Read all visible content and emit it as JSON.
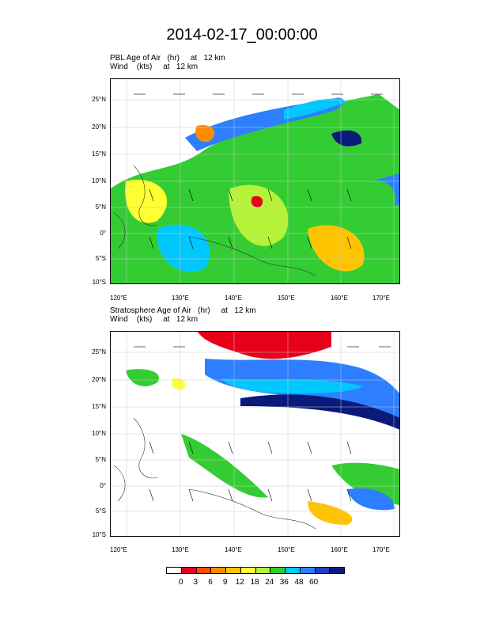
{
  "title": "2014-02-17_00:00:00",
  "panels": [
    {
      "title_line1": "PBL Age of Air   (hr)     at   12 km",
      "title_line2": "Wind    (kts)     at   12 km"
    },
    {
      "title_line1": "Stratosphere Age of Air   (hr)     at   12 km",
      "title_line2": "Wind    (kts)     at   12 km"
    }
  ],
  "axes": {
    "lat_labels": [
      "25°N",
      "20°N",
      "15°N",
      "10°N",
      "5°N",
      "0°",
      "5°S",
      "10°S"
    ],
    "lon_labels": [
      "120°E",
      "130°E",
      "140°E",
      "150°E",
      "160°E",
      "170°E"
    ]
  },
  "colorbar": {
    "labels": [
      "0",
      "3",
      "6",
      "9",
      "12",
      "18",
      "24",
      "36",
      "48",
      "60"
    ],
    "colors": [
      "#ffffff",
      "#e8001a",
      "#ff4d00",
      "#ff8c00",
      "#ffc400",
      "#ffff33",
      "#b7f23a",
      "#33cc33",
      "#00c8ff",
      "#2d7fff",
      "#1f3fbf",
      "#0a1a7a"
    ]
  }
}
